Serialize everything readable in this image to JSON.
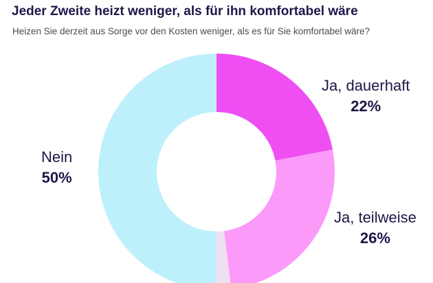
{
  "header": {
    "title": "Jeder Zweite heizt weniger, als für ihn komfortabel wäre",
    "subtitle": "Heizen Sie derzeit aus Sorge vor den Kosten weniger, als es für Sie komfortabel wäre?"
  },
  "chart_data": {
    "type": "pie",
    "title": "Jeder Zweite heizt weniger, als für ihn komfortabel wäre",
    "subtitle": "Heizen Sie derzeit aus Sorge vor den Kosten weniger, als es für Sie komfortabel wäre?",
    "donut": true,
    "slices": [
      {
        "label": "Ja, dauerhaft",
        "value": 22,
        "value_label": "22%",
        "color": "#ee4ef2"
      },
      {
        "label": "Ja, teilweise",
        "value": 26,
        "value_label": "26%",
        "color": "#fb9af9"
      },
      {
        "label": "",
        "value": 2,
        "value_label": "",
        "color": "#efdff0"
      },
      {
        "label": "Nein",
        "value": 50,
        "value_label": "50%",
        "color": "#bdf0fb"
      }
    ]
  }
}
